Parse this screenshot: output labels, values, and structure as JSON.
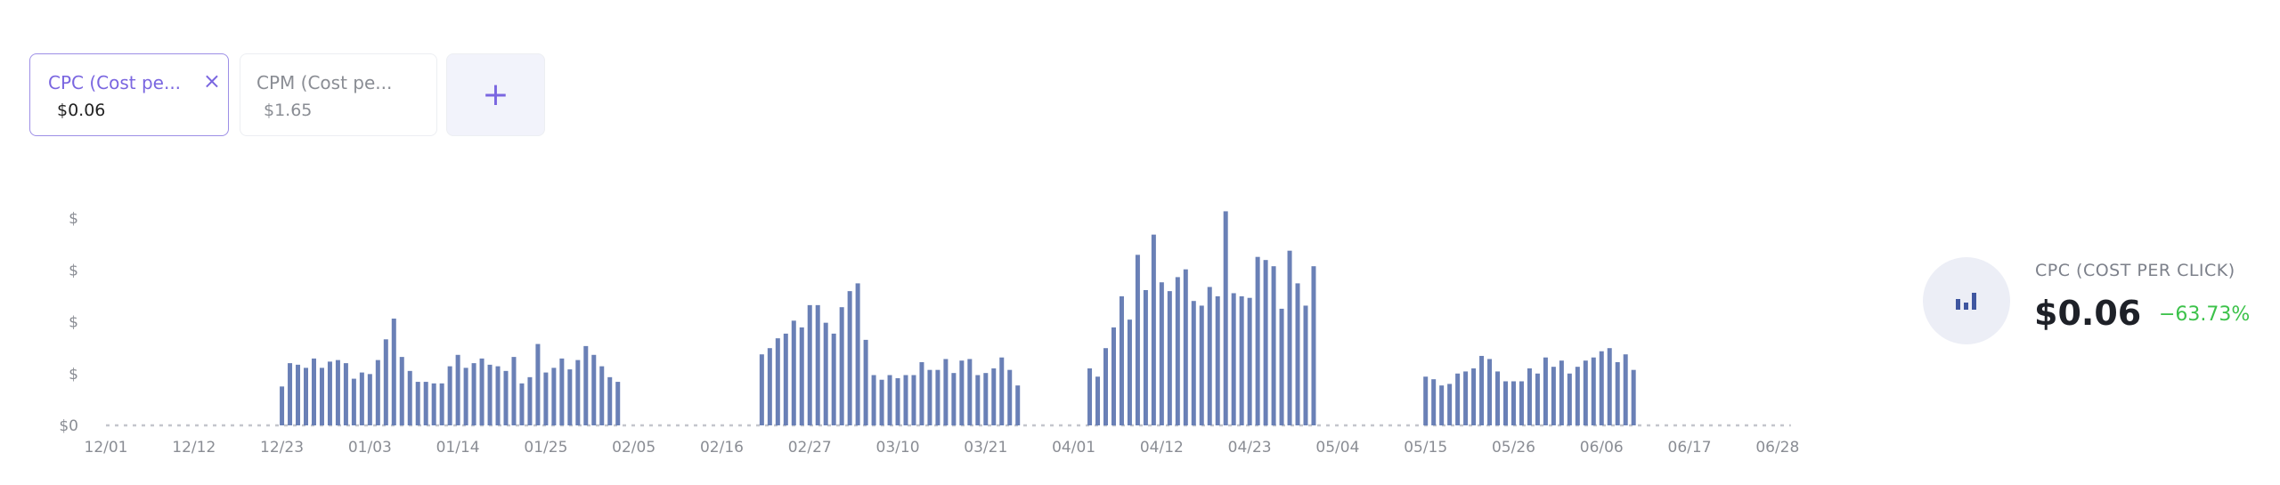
{
  "tabs": [
    {
      "title": "CPC (Cost pe...",
      "value": "$0.06",
      "active": true
    },
    {
      "title": "CPM (Cost pe...",
      "value": "$1.65",
      "active": false
    }
  ],
  "tab_close_icon": "×",
  "add_button_label": "+",
  "summary": {
    "icon": "bar-chart-icon",
    "title": "CPC (COST PER CLICK)",
    "value": "$0.06",
    "change": "−63.73%",
    "change_color": "#3cc24a"
  },
  "colors": {
    "bar": "#6a80b6",
    "accent": "#7a66e0"
  },
  "chart_data": {
    "type": "bar",
    "title": "",
    "xlabel": "",
    "ylabel": "",
    "x_range": [
      "12/01",
      "06/28"
    ],
    "x_ticks": [
      "12/01",
      "12/12",
      "12/23",
      "01/03",
      "01/14",
      "01/25",
      "02/05",
      "02/16",
      "02/27",
      "03/10",
      "03/21",
      "04/01",
      "04/12",
      "04/23",
      "05/04",
      "05/15",
      "05/26",
      "06/06",
      "06/17",
      "06/28"
    ],
    "y_ticks": [
      "$0",
      "$",
      "$",
      "$",
      "$"
    ],
    "ylim": [
      0,
      4
    ],
    "grid": false,
    "baseline": "dotted",
    "segments": [
      {
        "start": "12/23",
        "values": [
          0.75,
          1.2,
          1.17,
          1.11,
          1.29,
          1.11,
          1.23,
          1.26,
          1.2,
          0.9,
          1.02,
          0.99,
          1.26,
          1.66,
          2.06,
          1.32,
          1.05,
          0.84,
          0.84,
          0.81,
          0.81,
          1.14,
          1.36,
          1.11,
          1.2,
          1.29,
          1.17,
          1.14,
          1.05,
          1.32,
          0.81,
          0.93,
          1.57,
          1.02,
          1.11,
          1.29,
          1.08,
          1.26,
          1.53,
          1.36,
          1.14,
          0.93,
          0.84
        ]
      },
      {
        "start": "02/21",
        "values": [
          1.37,
          1.49,
          1.68,
          1.77,
          2.02,
          1.89,
          2.32,
          2.32,
          1.98,
          1.77,
          2.28,
          2.59,
          2.74,
          1.65,
          0.97,
          0.88,
          0.97,
          0.91,
          0.97,
          0.97,
          1.22,
          1.07,
          1.07,
          1.28,
          1.01,
          1.25,
          1.28,
          0.97,
          1.01,
          1.1,
          1.31,
          1.07,
          0.77
        ]
      },
      {
        "start": "04/03",
        "values": [
          1.1,
          0.94,
          1.49,
          1.89,
          2.49,
          2.04,
          3.29,
          2.61,
          3.68,
          2.76,
          2.59,
          2.86,
          3.01,
          2.4,
          2.31,
          2.67,
          2.49,
          4.13,
          2.55,
          2.49,
          2.46,
          3.25,
          3.19,
          3.07,
          2.25,
          3.37,
          2.74,
          2.31,
          3.07
        ]
      },
      {
        "start": "05/15",
        "values": [
          0.94,
          0.89,
          0.77,
          0.8,
          1.0,
          1.04,
          1.1,
          1.34,
          1.28,
          1.04,
          0.85,
          0.85,
          0.85,
          1.1,
          1.0,
          1.31,
          1.13,
          1.25,
          1.0,
          1.13,
          1.25,
          1.31,
          1.43,
          1.49,
          1.22,
          1.37,
          1.07
        ]
      }
    ]
  }
}
